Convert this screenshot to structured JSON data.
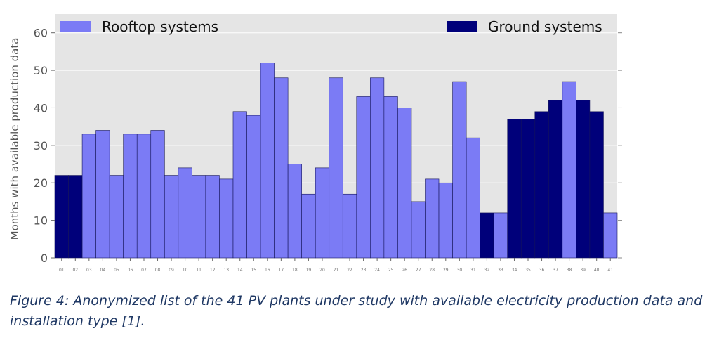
{
  "chart_data": {
    "type": "bar",
    "ylabel": "Months with available production data",
    "xlabel": "",
    "ylim": [
      0,
      65
    ],
    "yticks": [
      0,
      10,
      20,
      30,
      40,
      50,
      60
    ],
    "grid": true,
    "legend_placement": "top (split left/right)",
    "categories": [
      "01",
      "02",
      "03",
      "04",
      "05",
      "06",
      "07",
      "08",
      "09",
      "10",
      "11",
      "12",
      "13",
      "14",
      "15",
      "16",
      "17",
      "18",
      "19",
      "20",
      "21",
      "22",
      "23",
      "24",
      "25",
      "26",
      "27",
      "28",
      "29",
      "30",
      "31",
      "32",
      "33",
      "34",
      "35",
      "36",
      "37",
      "38",
      "39",
      "40",
      "41"
    ],
    "values": [
      22,
      22,
      33,
      34,
      22,
      33,
      33,
      34,
      22,
      24,
      22,
      22,
      21,
      39,
      38,
      52,
      48,
      25,
      17,
      24,
      48,
      17,
      43,
      48,
      43,
      40,
      15,
      21,
      20,
      47,
      32,
      12,
      12,
      37,
      37,
      39,
      42,
      47,
      42,
      39,
      12
    ],
    "installation_type": [
      "Ground",
      "Ground",
      "Rooftop",
      "Rooftop",
      "Rooftop",
      "Rooftop",
      "Rooftop",
      "Rooftop",
      "Rooftop",
      "Rooftop",
      "Rooftop",
      "Rooftop",
      "Rooftop",
      "Rooftop",
      "Rooftop",
      "Rooftop",
      "Rooftop",
      "Rooftop",
      "Rooftop",
      "Rooftop",
      "Rooftop",
      "Rooftop",
      "Rooftop",
      "Rooftop",
      "Rooftop",
      "Rooftop",
      "Rooftop",
      "Rooftop",
      "Rooftop",
      "Rooftop",
      "Rooftop",
      "Ground",
      "Rooftop",
      "Ground",
      "Ground",
      "Ground",
      "Ground",
      "Rooftop",
      "Ground",
      "Ground",
      "Rooftop"
    ],
    "series": [
      {
        "name": "Rooftop systems",
        "color": "#7b7bf5"
      },
      {
        "name": "Ground systems",
        "color": "#00007a"
      }
    ],
    "colors": {
      "plot_bg": "#e5e5e5",
      "grid": "#ffffff",
      "text": "#555555"
    }
  },
  "caption": "Figure 4: Anonymized list of the 41 PV plants under study with available electricity production data and installation type [1]."
}
